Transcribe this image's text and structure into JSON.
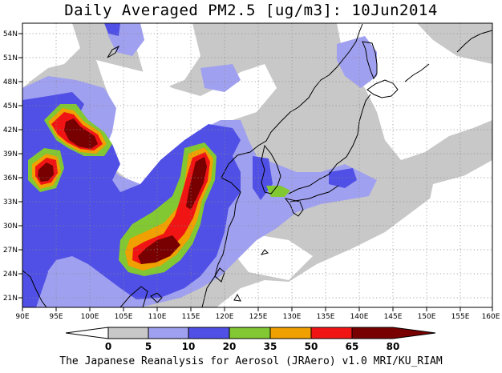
{
  "title": "Daily Averaged PM2.5 [ug/m3]: 10Jun2014",
  "footer": "The Japanese Reanalysis for Aerosol (JRAero) v1.0 MRI/KU_RIAM",
  "map": {
    "lon_range": [
      90,
      160
    ],
    "lat_range": [
      20,
      55
    ],
    "lon_ticks": [
      "90E",
      "95E",
      "100E",
      "105E",
      "110E",
      "115E",
      "120E",
      "125E",
      "130E",
      "135E",
      "140E",
      "145E",
      "150E",
      "155E",
      "160E"
    ],
    "lat_ticks": [
      "21N",
      "24N",
      "27N",
      "30N",
      "33N",
      "36N",
      "39N",
      "42N",
      "45N",
      "48N",
      "51N",
      "54N"
    ],
    "grid": "dotted",
    "variable": "PM2.5",
    "units": "ug/m3"
  },
  "legend": {
    "labels": [
      "0",
      "5",
      "10",
      "20",
      "35",
      "50",
      "65",
      "80"
    ],
    "colors": [
      "#ffffff",
      "#c8c8c8",
      "#a0a0f0",
      "#5050e6",
      "#82c832",
      "#f0a000",
      "#f01414",
      "#780000"
    ]
  }
}
